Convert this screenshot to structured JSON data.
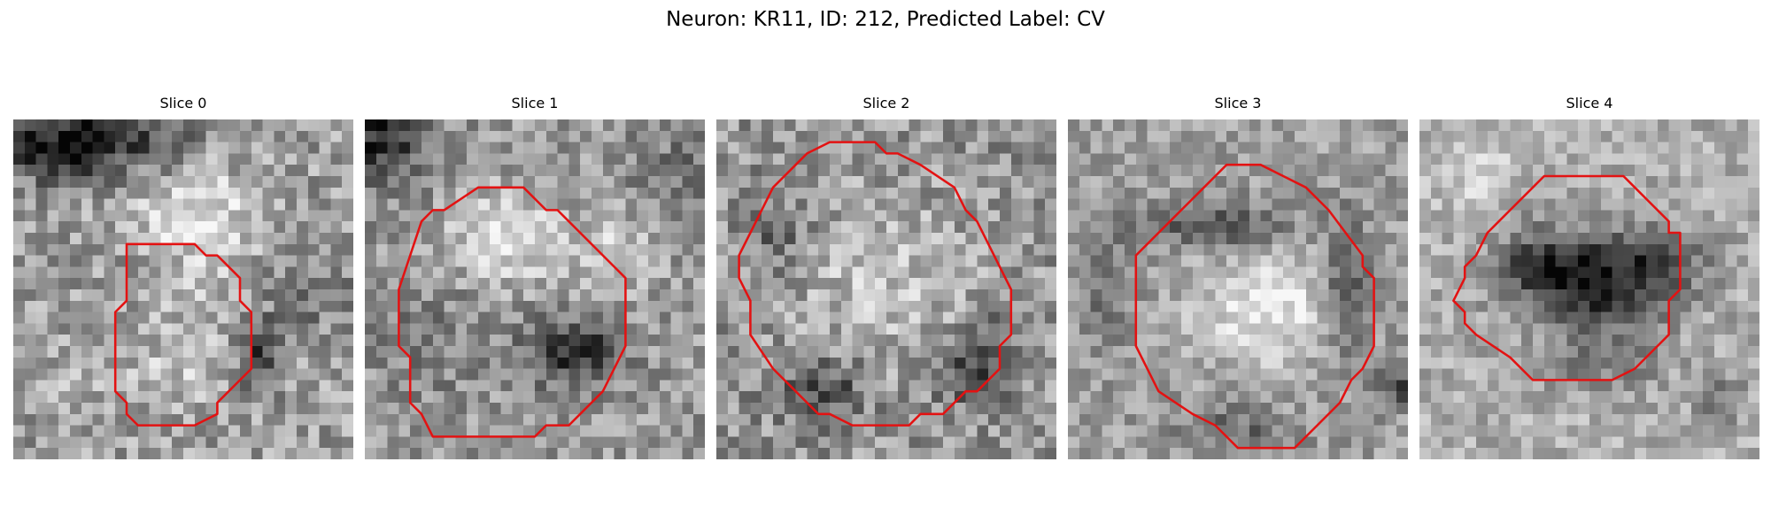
{
  "figure": {
    "title": "Neuron: KR11, ID: 212, Predicted Label: CV"
  },
  "panels": [
    {
      "title": "Slice 0",
      "contour_color": "#e31212"
    },
    {
      "title": "Slice 1",
      "contour_color": "#e31212"
    },
    {
      "title": "Slice 2",
      "contour_color": "#e31212"
    },
    {
      "title": "Slice 3",
      "contour_color": "#e31212"
    },
    {
      "title": "Slice 4",
      "contour_color": "#e31212"
    }
  ]
}
